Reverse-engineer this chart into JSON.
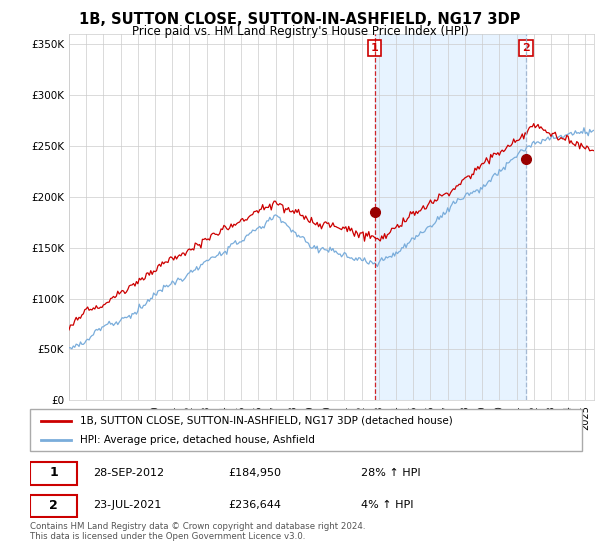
{
  "title": "1B, SUTTON CLOSE, SUTTON-IN-ASHFIELD, NG17 3DP",
  "subtitle": "Price paid vs. HM Land Registry's House Price Index (HPI)",
  "legend_line1": "1B, SUTTON CLOSE, SUTTON-IN-ASHFIELD, NG17 3DP (detached house)",
  "legend_line2": "HPI: Average price, detached house, Ashfield",
  "transaction1_date": "28-SEP-2012",
  "transaction1_price": "£184,950",
  "transaction1_hpi": "28% ↑ HPI",
  "transaction2_date": "23-JUL-2021",
  "transaction2_price": "£236,644",
  "transaction2_hpi": "4% ↑ HPI",
  "footer": "Contains HM Land Registry data © Crown copyright and database right 2024.\nThis data is licensed under the Open Government Licence v3.0.",
  "ylim": [
    0,
    360000
  ],
  "yticks": [
    0,
    50000,
    100000,
    150000,
    200000,
    250000,
    300000,
    350000
  ],
  "ytick_labels": [
    "£0",
    "£50K",
    "£100K",
    "£150K",
    "£200K",
    "£250K",
    "£300K",
    "£350K"
  ],
  "transaction1_x": 2012.75,
  "transaction1_y": 184950,
  "transaction2_x": 2021.55,
  "transaction2_y": 236644,
  "xlim_start": 1995,
  "xlim_end": 2025.5,
  "red_color": "#cc0000",
  "blue_color": "#7aaddb",
  "vline1_color": "#cc0000",
  "vline2_color": "#9ab0cc",
  "shade_color": "#ddeeff",
  "marker_color": "#990000",
  "background_color": "#ffffff",
  "grid_color": "#cccccc"
}
